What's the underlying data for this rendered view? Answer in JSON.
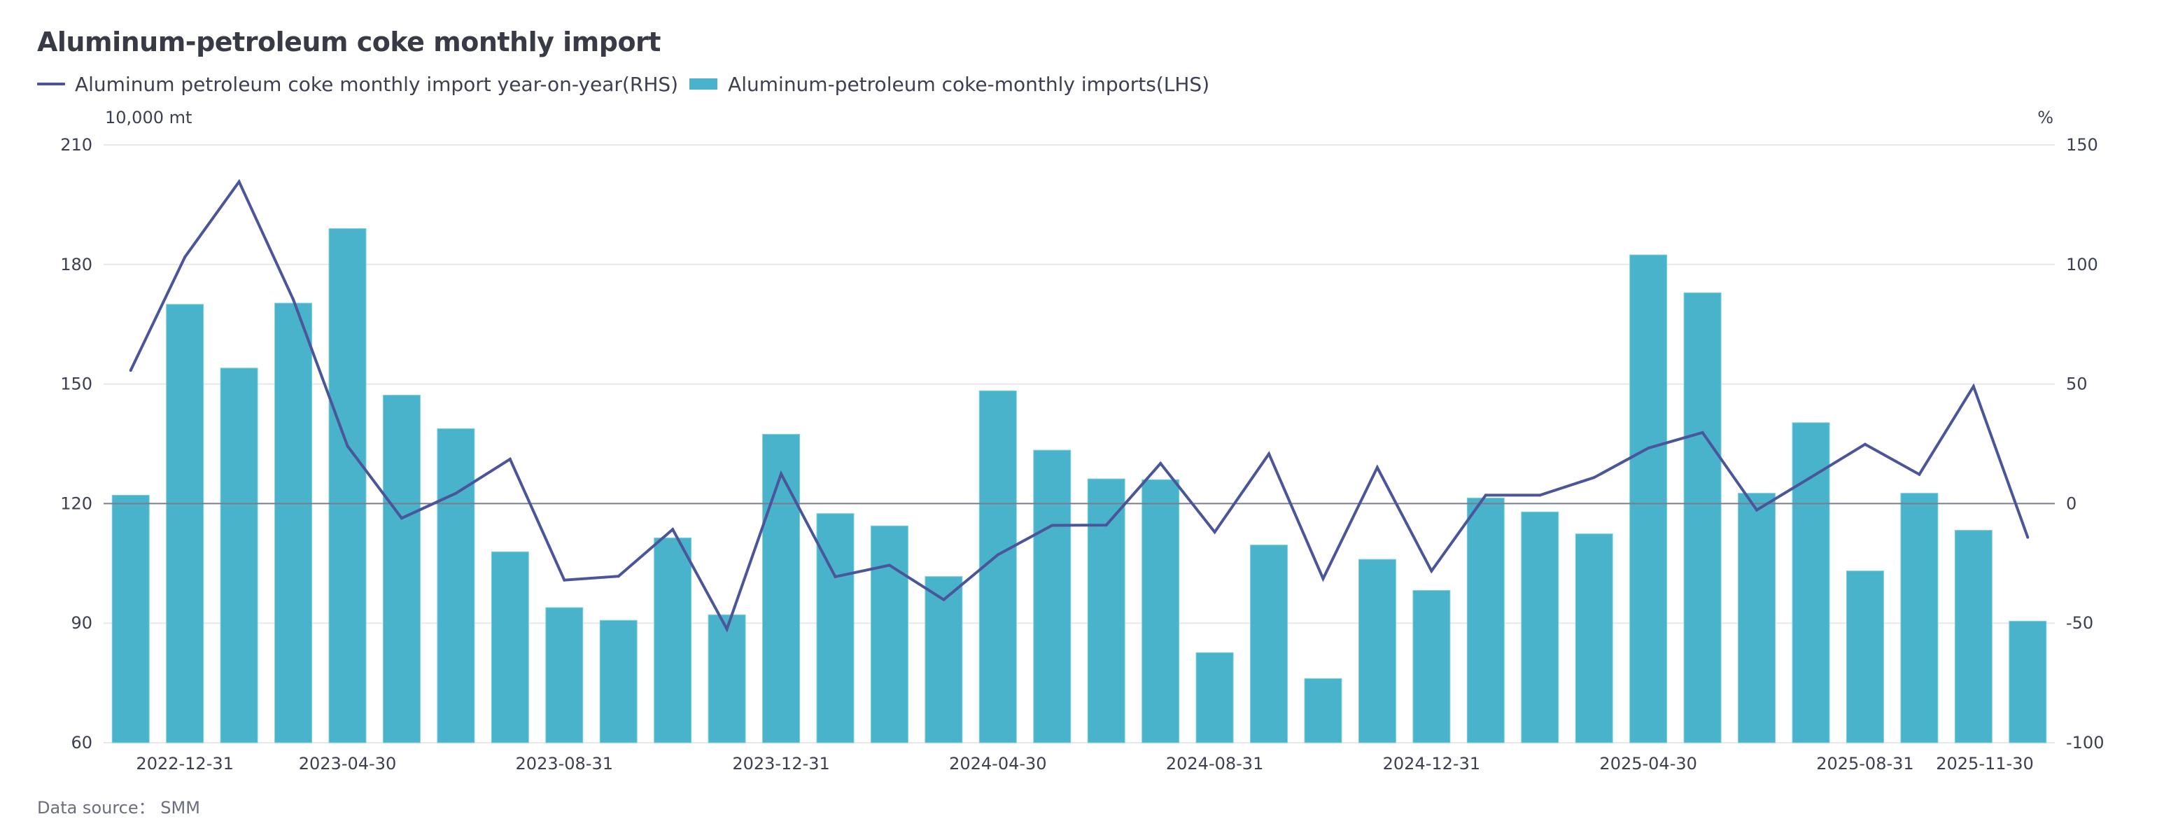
{
  "title": "Aluminum-petroleum coke monthly import",
  "legend": {
    "line_label": "Aluminum petroleum coke monthly import year-on-year(RHS)",
    "bar_label": "Aluminum-petroleum coke-monthly imports(LHS)"
  },
  "source": "Data source： SMM",
  "colors": {
    "bar": "#48b3cb",
    "line": "#4a5699",
    "zero_line": "#7a7e8c",
    "grid": "#e8e8ec",
    "text": "#3d4050"
  },
  "chart_data": {
    "type": "bar+line",
    "title": "Aluminum-petroleum coke monthly import",
    "left_axis_unit": "10,000 mt",
    "right_axis_unit": "%",
    "ylim_left": [
      60,
      210
    ],
    "ylim_right": [
      -100,
      150
    ],
    "yticks_left": [
      60,
      90,
      120,
      150,
      180,
      210
    ],
    "yticks_right": [
      -100,
      -50,
      0,
      50,
      100,
      150
    ],
    "grid": true,
    "legend_position": "top-left",
    "categories": [
      "2022-11-30",
      "2022-12-31",
      "2023-02-28",
      "2023-03-31",
      "2023-04-30",
      "2023-05-31",
      "2023-06-30",
      "2023-07-31",
      "2023-08-31",
      "2023-09-30",
      "2023-10-31",
      "2023-11-30",
      "2023-12-31",
      "2024-01-31",
      "2024-02-29",
      "2024-03-31",
      "2024-04-30",
      "2024-05-31",
      "2024-06-30",
      "2024-07-31",
      "2024-08-31",
      "2024-09-30",
      "2024-10-31",
      "2024-11-30",
      "2024-12-31",
      "2025-01-31",
      "2025-02-28",
      "2025-03-31",
      "2025-04-30",
      "2025-05-31",
      "2025-06-30",
      "2025-07-31",
      "2025-08-31",
      "2025-09-30",
      "2025-10-31",
      "2025-11-30"
    ],
    "xtick_labels": [
      "2022-12-31",
      "2023-04-30",
      "2023-08-31",
      "2023-12-31",
      "2024-04-30",
      "2024-08-31",
      "2024-12-31",
      "2025-04-30",
      "2025-08-31",
      "2025-11-30"
    ],
    "series": [
      {
        "name": "Aluminum-petroleum coke-monthly imports(LHS)",
        "type": "bar",
        "axis": "left",
        "values": [
          122.1,
          170.0,
          154.0,
          170.3,
          189.0,
          147.2,
          138.8,
          107.9,
          93.9,
          90.7,
          111.4,
          92.1,
          137.4,
          117.5,
          114.4,
          101.7,
          148.3,
          133.4,
          126.2,
          126.0,
          82.6,
          109.6,
          76.1,
          106.0,
          98.2,
          121.4,
          117.9,
          112.4,
          182.4,
          172.9,
          122.6,
          140.3,
          103.1,
          122.6,
          113.3,
          90.5
        ]
      },
      {
        "name": "Aluminum petroleum coke monthly import year-on-year(RHS)",
        "type": "line",
        "axis": "right",
        "values": [
          55.7,
          103.1,
          134.6,
          85.3,
          24.1,
          -6.1,
          4.3,
          18.6,
          -32.0,
          -30.4,
          -10.8,
          -52.5,
          12.4,
          -30.6,
          -25.8,
          -40.2,
          -21.4,
          -9.1,
          -9.0,
          16.8,
          -11.9,
          20.8,
          -31.4,
          15.1,
          -28.2,
          3.5,
          3.5,
          10.9,
          23.2,
          29.7,
          -2.7,
          11.0,
          24.8,
          12.2,
          49.0,
          -14.1
        ]
      }
    ]
  }
}
